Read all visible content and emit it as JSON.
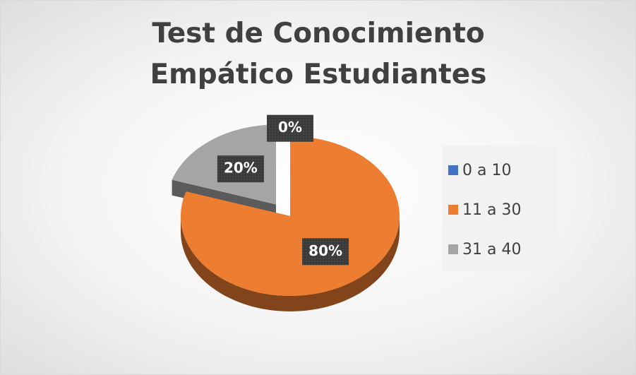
{
  "chart_data": {
    "type": "pie",
    "title": "Test de Conocimiento Empático Estudiantes",
    "categories": [
      "0 a 10",
      "11 a 30",
      "31 a 40"
    ],
    "values": [
      0,
      80,
      20
    ],
    "value_labels": [
      "0%",
      "80%",
      "20%"
    ],
    "colors": [
      "#4472c4",
      "#ed7d31",
      "#a5a5a5"
    ],
    "legend": "right"
  }
}
